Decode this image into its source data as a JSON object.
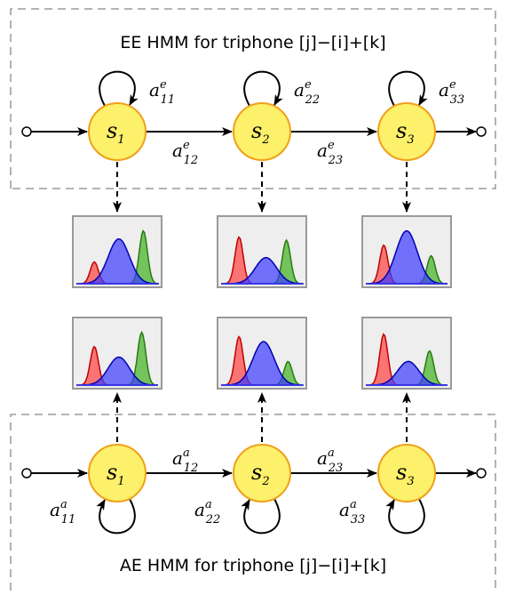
{
  "ee": {
    "title": "EE HMM for triphone [j]−[i]+[k]",
    "states": [
      {
        "name": "s",
        "sub": "1",
        "self_loop": {
          "base": "a",
          "sup": "e",
          "sub": "11"
        }
      },
      {
        "name": "s",
        "sub": "2",
        "self_loop": {
          "base": "a",
          "sup": "e",
          "sub": "22"
        }
      },
      {
        "name": "s",
        "sub": "3",
        "self_loop": {
          "base": "a",
          "sup": "e",
          "sub": "33"
        }
      }
    ],
    "transitions": [
      {
        "base": "a",
        "sup": "e",
        "sub": "12"
      },
      {
        "base": "a",
        "sup": "e",
        "sub": "23"
      }
    ]
  },
  "ae": {
    "title": "AE HMM for triphone [j]−[i]+[k]",
    "states": [
      {
        "name": "s",
        "sub": "1",
        "self_loop": {
          "base": "a",
          "sup": "a",
          "sub": "11"
        }
      },
      {
        "name": "s",
        "sub": "2",
        "self_loop": {
          "base": "a",
          "sup": "a",
          "sub": "22"
        }
      },
      {
        "name": "s",
        "sub": "3",
        "self_loop": {
          "base": "a",
          "sup": "a",
          "sub": "33"
        }
      }
    ],
    "transitions": [
      {
        "base": "a",
        "sup": "a",
        "sub": "12"
      },
      {
        "base": "a",
        "sup": "a",
        "sub": "23"
      }
    ]
  },
  "colors": {
    "state_fill": "#fdf06a",
    "state_stroke": "#f0a01a",
    "red": "#ff4040",
    "blue": "#3a3aff",
    "green": "#40b020",
    "panel_bg": "#eeeeee",
    "panel_border": "#999999",
    "dash": "#888888"
  }
}
